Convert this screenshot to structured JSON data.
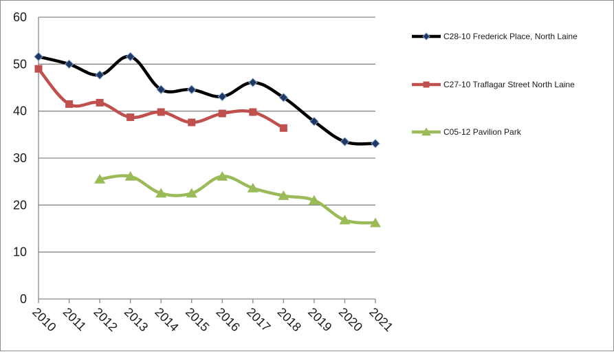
{
  "chart_data": {
    "type": "line",
    "title": "",
    "xlabel": "",
    "ylabel": "",
    "categories": [
      "2010",
      "2011",
      "2012",
      "2013",
      "2014",
      "2015",
      "2016",
      "2017",
      "2018",
      "2019",
      "2020",
      "2021"
    ],
    "ylim": [
      0,
      60
    ],
    "yticks": [
      0,
      10,
      20,
      30,
      40,
      50,
      60
    ],
    "grid": "horizontal",
    "legend_position": "right",
    "smoothed": true,
    "series": [
      {
        "name": "C28-10 Frederick Place, North Laine",
        "color": "#000000",
        "marker": "diamond",
        "marker_color": "#1f3864",
        "values": [
          51.6,
          50.0,
          47.7,
          51.6,
          44.6,
          44.6,
          43.1,
          46.1,
          42.9,
          37.8,
          33.5,
          33.1
        ]
      },
      {
        "name": "C27-10 Traflagar Street North Laine",
        "color": "#c0504d",
        "marker": "square",
        "marker_color": "#c0504d",
        "values": [
          49.0,
          41.5,
          41.8,
          38.7,
          39.8,
          37.6,
          39.5,
          39.8,
          36.4,
          null,
          null,
          null
        ]
      },
      {
        "name": "C05-12 Pavilion Park",
        "color": "#9bbb59",
        "marker": "triangle",
        "marker_color": "#9bbb59",
        "values": [
          null,
          null,
          25.5,
          26.1,
          22.5,
          22.5,
          26.1,
          23.6,
          22.0,
          21.0,
          16.8,
          16.2
        ]
      }
    ]
  }
}
